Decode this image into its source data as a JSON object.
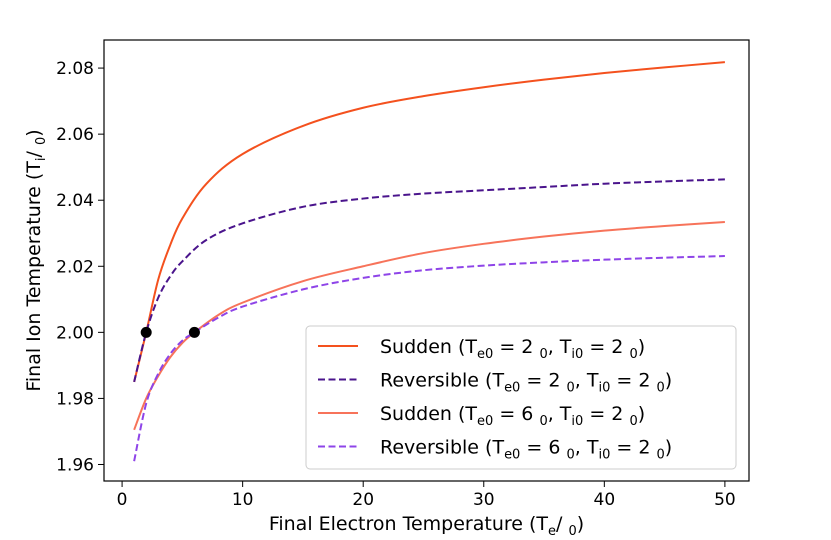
{
  "chart_data": {
    "type": "line",
    "xlabel": {
      "main": "Final Electron Temperature (T",
      "sub": "e",
      "post": "/  ",
      "sub2": "0",
      "close": ")"
    },
    "ylabel": {
      "main": "Final Ion Temperature (T",
      "sub": "i",
      "post": "/  ",
      "sub2": "0",
      "close": ")"
    },
    "xlim": [
      -1.5,
      52
    ],
    "ylim": [
      1.955,
      2.0885
    ],
    "xticks": [
      0,
      10,
      20,
      30,
      40,
      50
    ],
    "yticks": [
      1.96,
      1.98,
      2.0,
      2.02,
      2.04,
      2.06,
      2.08
    ],
    "ytick_labels": [
      "1.96",
      "1.98",
      "2.00",
      "2.02",
      "2.04",
      "2.06",
      "2.08"
    ],
    "legend_placement": "lower-right",
    "series": [
      {
        "name": {
          "pre": "Sudden (T",
          "s1": "e0",
          "m1": " = 2  ",
          "s2": "0",
          "m2": ", T",
          "s3": "i0",
          "m3": " = 2  ",
          "s4": "0",
          "end": ")"
        },
        "color": "#f4511e",
        "dash": "solid",
        "x": [
          1,
          2,
          3,
          4,
          5,
          7,
          10,
          15,
          20,
          25,
          30,
          35,
          40,
          45,
          50
        ],
        "y": [
          1.985,
          2.0,
          2.016,
          2.0265,
          2.0345,
          2.045,
          2.054,
          2.0625,
          2.068,
          2.0715,
          2.0742,
          2.0765,
          2.0785,
          2.0802,
          2.0818
        ]
      },
      {
        "name": {
          "pre": "Reversible (T",
          "s1": "e0",
          "m1": " = 2  ",
          "s2": "0",
          "m2": ", T",
          "s3": "i0",
          "m3": " = 2  ",
          "s4": "0",
          "end": ")"
        },
        "color": "#4a148c",
        "dash": "dashed",
        "x": [
          1,
          2,
          3,
          4,
          5,
          7,
          10,
          15,
          20,
          25,
          30,
          35,
          40,
          45,
          50
        ],
        "y": [
          1.985,
          2.0,
          2.0105,
          2.017,
          2.0215,
          2.028,
          2.033,
          2.038,
          2.0405,
          2.042,
          2.043,
          2.044,
          2.045,
          2.0457,
          2.0463
        ]
      },
      {
        "name": {
          "pre": "Sudden (T",
          "s1": "e0",
          "m1": " = 6  ",
          "s2": "0",
          "m2": ", T",
          "s3": "i0",
          "m3": " = 2  ",
          "s4": "0",
          "end": ")"
        },
        "color": "#f7735a",
        "dash": "solid",
        "x": [
          1,
          2,
          3,
          4,
          5,
          6,
          8,
          10,
          15,
          20,
          25,
          30,
          35,
          40,
          45,
          50
        ],
        "y": [
          1.9705,
          1.98,
          1.9868,
          1.9925,
          1.9968,
          2.0,
          2.0053,
          2.009,
          2.0155,
          2.02,
          2.024,
          2.0268,
          2.029,
          2.0308,
          2.0322,
          2.0334
        ]
      },
      {
        "name": {
          "pre": "Reversible (T",
          "s1": "e0",
          "m1": " = 6  ",
          "s2": "0",
          "m2": ", T",
          "s3": "i0",
          "m3": " = 2  ",
          "s4": "0",
          "end": ")"
        },
        "color": "#8e44e8",
        "dash": "dashed",
        "x": [
          1,
          2,
          3,
          4,
          5,
          6,
          8,
          10,
          15,
          20,
          25,
          30,
          35,
          40,
          45,
          50
        ],
        "y": [
          1.961,
          1.9785,
          1.9875,
          1.9935,
          1.9975,
          2.0,
          2.0045,
          2.0078,
          2.013,
          2.0165,
          2.0188,
          2.0202,
          2.0212,
          2.022,
          2.0226,
          2.0231
        ]
      }
    ],
    "markers": [
      {
        "x": 2,
        "y": 2.0,
        "color": "#000000"
      },
      {
        "x": 6,
        "y": 2.0,
        "color": "#000000"
      }
    ]
  }
}
